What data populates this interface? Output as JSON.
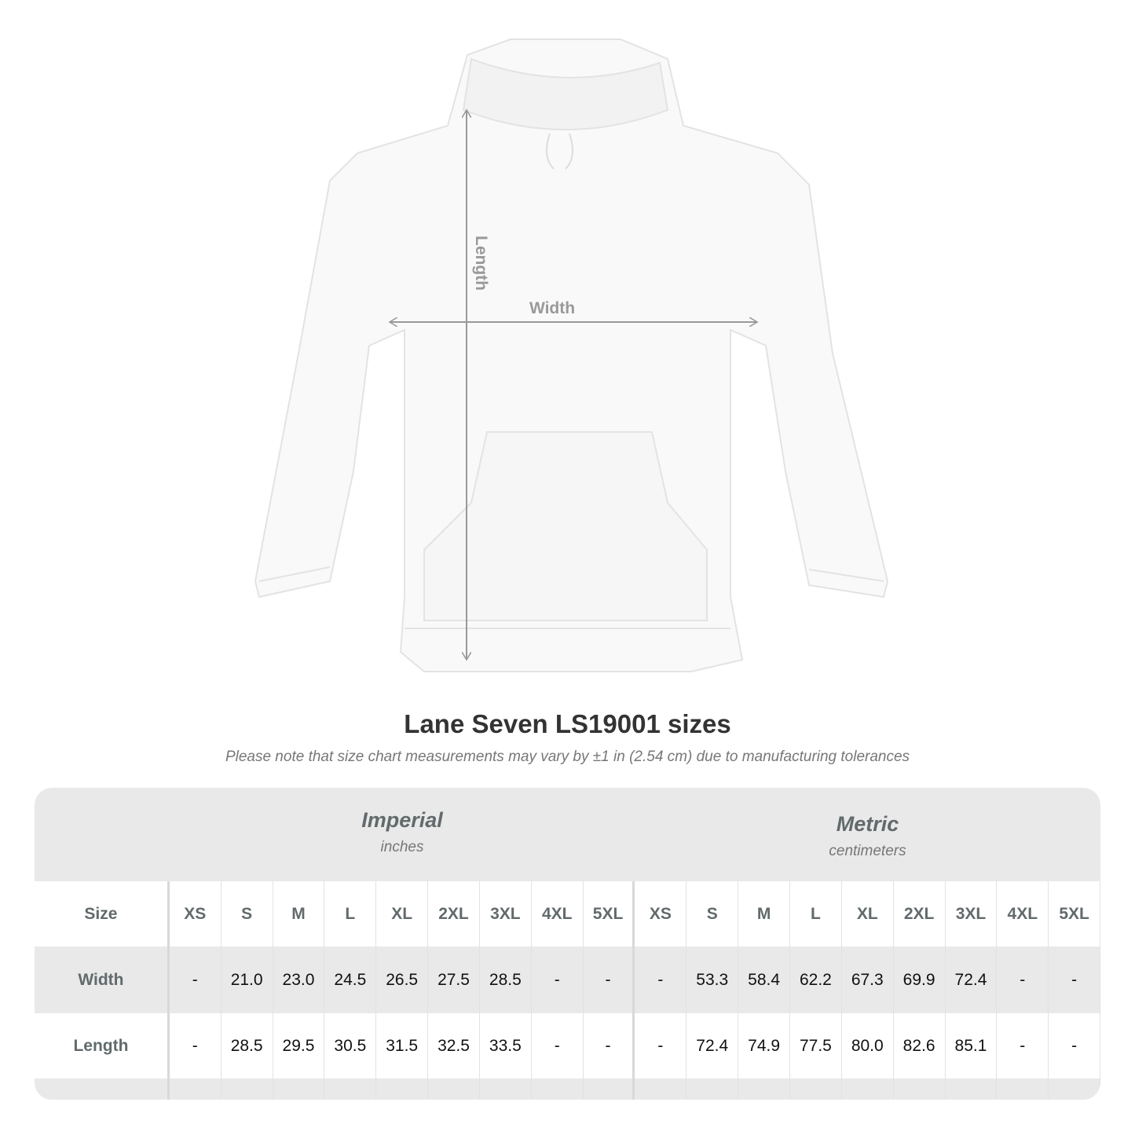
{
  "diagram": {
    "length_label": "Length",
    "width_label": "Width"
  },
  "title": "Lane Seven LS19001 sizes",
  "subtitle": "Please note that size chart measurements may vary by ±1 in (2.54 cm) due to manufacturing tolerances",
  "table": {
    "imperial": {
      "label": "Imperial",
      "unit": "inches"
    },
    "metric": {
      "label": "Metric",
      "unit": "centimeters"
    },
    "size_label": "Size",
    "sizes": [
      "XS",
      "S",
      "M",
      "L",
      "XL",
      "2XL",
      "3XL",
      "4XL",
      "5XL"
    ],
    "rows": [
      {
        "label": "Width",
        "imperial": [
          "-",
          "21.0",
          "23.0",
          "24.5",
          "26.5",
          "27.5",
          "28.5",
          "-",
          "-"
        ],
        "metric": [
          "-",
          "53.3",
          "58.4",
          "62.2",
          "67.3",
          "69.9",
          "72.4",
          "-",
          "-"
        ]
      },
      {
        "label": "Length",
        "imperial": [
          "-",
          "28.5",
          "29.5",
          "30.5",
          "31.5",
          "32.5",
          "33.5",
          "-",
          "-"
        ],
        "metric": [
          "-",
          "72.4",
          "74.9",
          "77.5",
          "80.0",
          "82.6",
          "85.1",
          "-",
          "-"
        ]
      }
    ]
  },
  "colors": {
    "arrow": "#999999",
    "header_text": "#626a6c",
    "band": "#e9e9e9"
  }
}
